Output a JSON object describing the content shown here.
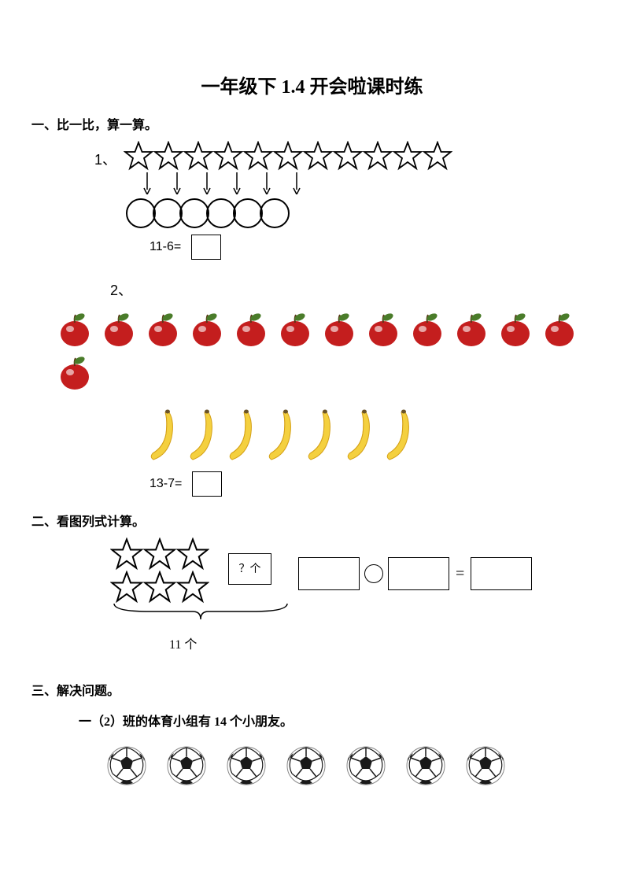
{
  "title": "一年级下 1.4 开会啦课时练",
  "section1": {
    "header": "一、比一比，算一算。",
    "q1": {
      "number": "1、",
      "stars": 11,
      "arrows": 6,
      "circles": 6,
      "equation": "11-6="
    },
    "q2": {
      "number": "2、",
      "apples_row1": 12,
      "apples_row2": 1,
      "bananas": 7,
      "equation": "13-7="
    }
  },
  "section2": {
    "header": "二、看图列式计算。",
    "stars_rows": 2,
    "stars_per_row": 3,
    "question_label": "？个",
    "total_label": "11 个"
  },
  "section3": {
    "header": "三、解决问题。",
    "text": "一（2）班的体育小组有 14 个小朋友。",
    "soccer_balls": 7
  },
  "colors": {
    "apple_body": "#c41e1e",
    "apple_shine": "#ffffff",
    "apple_leaf": "#4a7c2a",
    "apple_stem": "#5a3818",
    "banana_body": "#f4d03f",
    "banana_shade": "#d4a017",
    "banana_tip": "#6b5428",
    "soccer_white": "#ffffff",
    "soccer_black": "#1a1a1a",
    "text": "#000000",
    "background": "#ffffff"
  }
}
